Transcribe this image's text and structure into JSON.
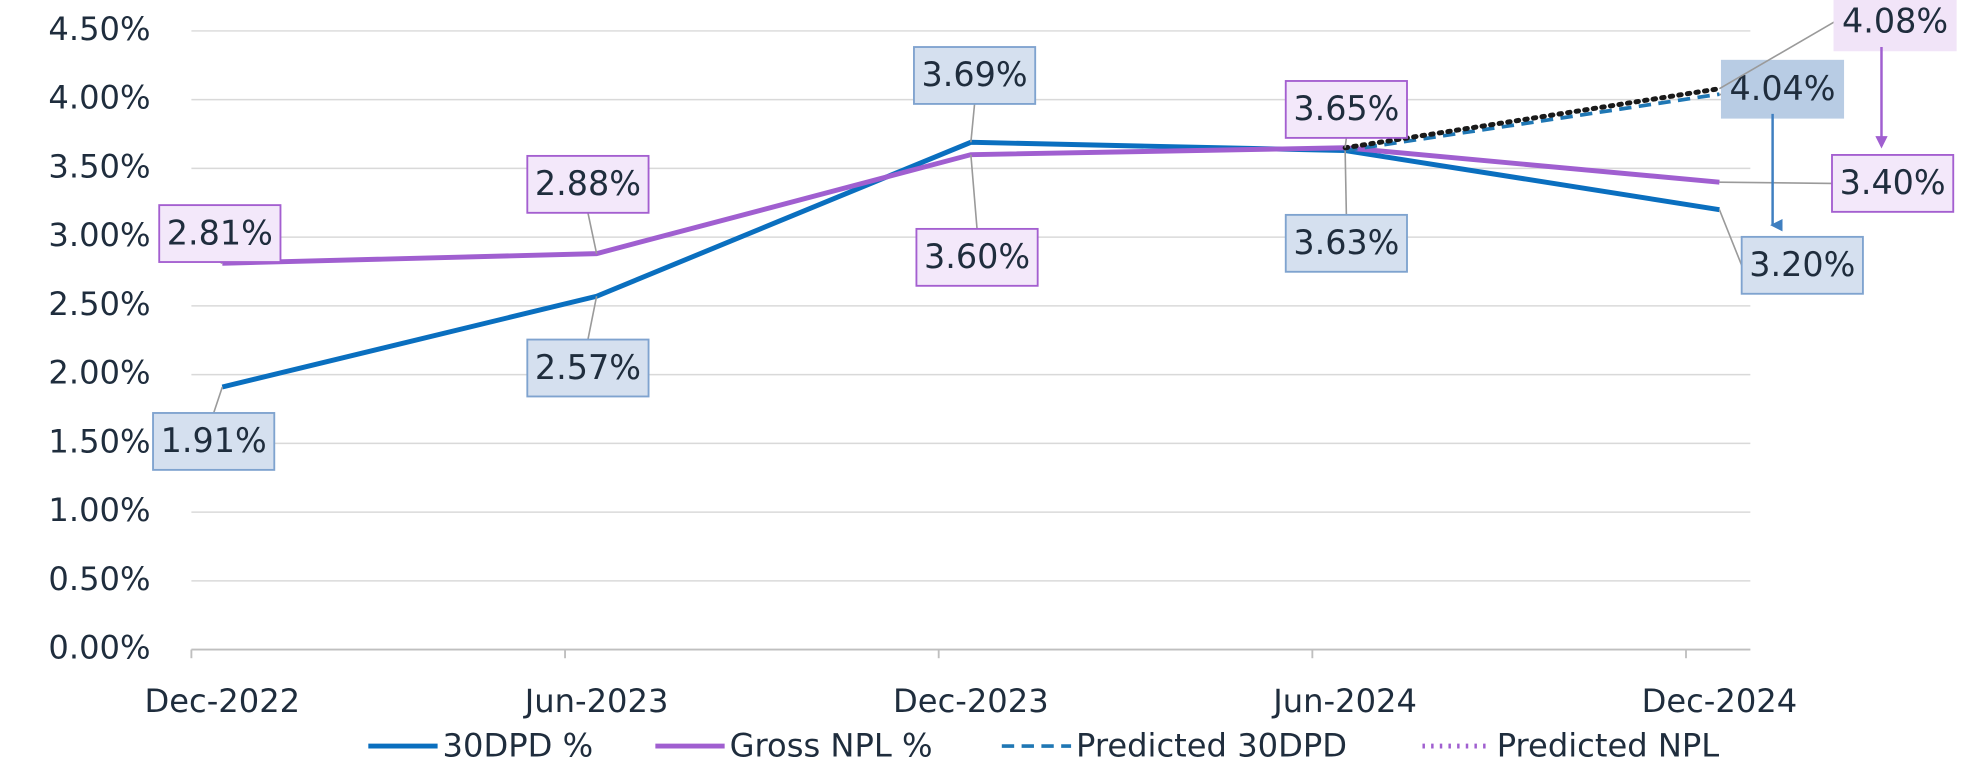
{
  "chart_data": {
    "type": "line",
    "categories": [
      "Dec-2022",
      "Jun-2023",
      "Dec-2023",
      "Jun-2024",
      "Dec-2024"
    ],
    "series": [
      {
        "name": "30DPD %",
        "color": "#0a6fbf",
        "style": "solid",
        "values": [
          1.91,
          2.57,
          3.69,
          3.63,
          3.2
        ],
        "value_labels": [
          "1.91%",
          "2.57%",
          "3.69%",
          "3.63%",
          "3.20%"
        ]
      },
      {
        "name": "Gross NPL %",
        "color": "#a05fd0",
        "style": "solid",
        "values": [
          2.81,
          2.88,
          3.6,
          3.65,
          3.4
        ],
        "value_labels": [
          "2.81%",
          "2.88%",
          "3.60%",
          "3.65%",
          "3.40%"
        ]
      },
      {
        "name": "Predicted 30DPD",
        "color": "#1f77b4",
        "style": "dashed",
        "values": [
          null,
          null,
          null,
          3.63,
          4.04
        ],
        "value_labels": [
          null,
          null,
          null,
          null,
          "4.04%"
        ]
      },
      {
        "name": "Predicted NPL",
        "color": "#1a1a1a",
        "style": "dotted",
        "values": [
          null,
          null,
          null,
          3.65,
          4.08
        ],
        "value_labels": [
          null,
          null,
          null,
          null,
          "4.08%"
        ]
      }
    ],
    "ylim": [
      0,
      4.5
    ],
    "yticks": [
      {
        "value": 0,
        "label": "0.00%"
      },
      {
        "value": 0.5,
        "label": "0.50%"
      },
      {
        "value": 1,
        "label": "1.00%"
      },
      {
        "value": 1.5,
        "label": "1.50%"
      },
      {
        "value": 2,
        "label": "2.00%"
      },
      {
        "value": 2.5,
        "label": "2.50%"
      },
      {
        "value": 3,
        "label": "3.00%"
      },
      {
        "value": 3.5,
        "label": "3.50%"
      },
      {
        "value": 4,
        "label": "4.00%"
      },
      {
        "value": 4.5,
        "label": "4.50%"
      }
    ],
    "grid": true,
    "legend": "bottom"
  }
}
